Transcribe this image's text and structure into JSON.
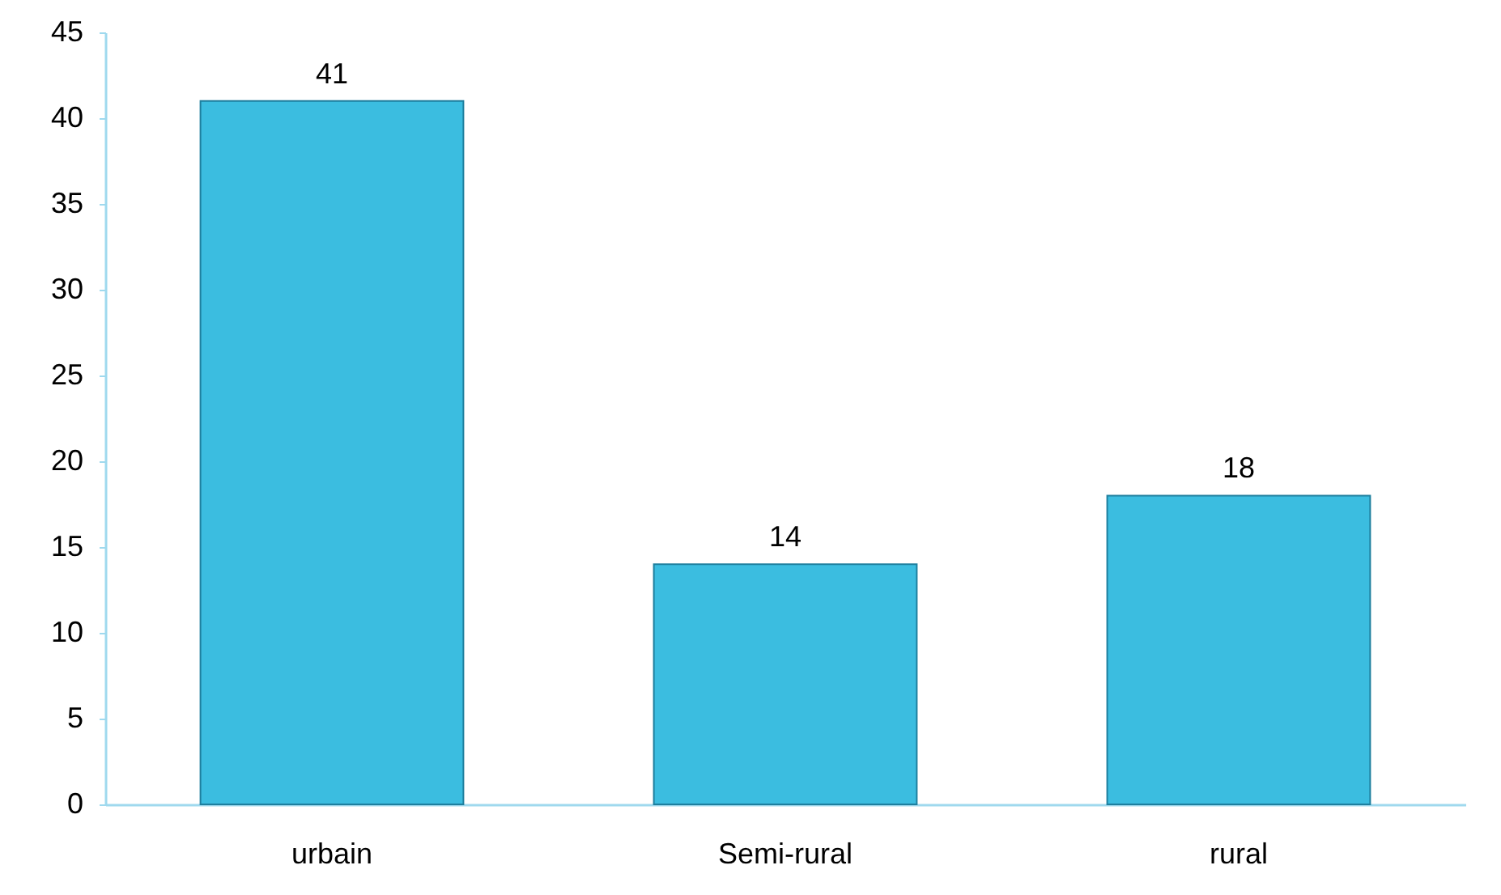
{
  "chart_data": {
    "type": "bar",
    "categories": [
      "urbain",
      "Semi-rural",
      "rural"
    ],
    "values": [
      41,
      14,
      18
    ],
    "color": "#3bbde0",
    "ylim": [
      0,
      45
    ],
    "yticks": [
      0,
      5,
      10,
      15,
      20,
      25,
      30,
      35,
      40,
      45
    ],
    "grid": false,
    "data_labels": true
  }
}
